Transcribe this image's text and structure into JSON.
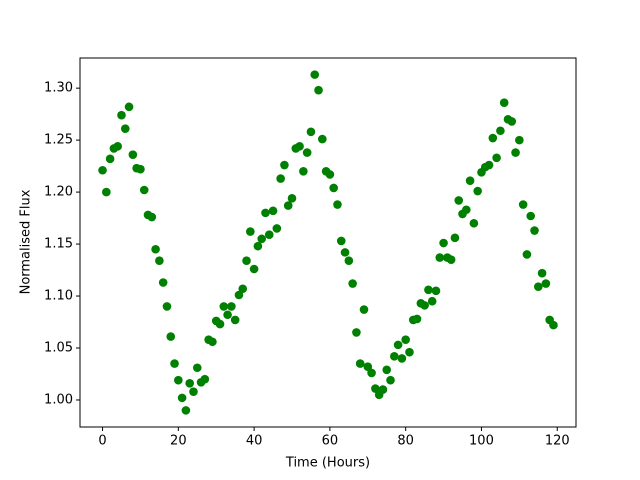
{
  "chart_data": {
    "type": "scatter",
    "xlabel": "Time (Hours)",
    "ylabel": "Normalised Flux",
    "color": "green",
    "x": [
      0,
      1,
      2,
      3,
      4,
      5,
      6,
      7,
      8,
      9,
      10,
      11,
      12,
      13,
      14,
      15,
      16,
      17,
      18,
      19,
      20,
      21,
      22,
      23,
      24,
      25,
      26,
      27,
      28,
      29,
      30,
      31,
      32,
      33,
      34,
      35,
      36,
      37,
      38,
      39,
      40,
      41,
      42,
      43,
      44,
      45,
      46,
      47,
      48,
      49,
      50,
      51,
      52,
      53,
      54,
      55,
      56,
      57,
      58,
      59,
      60,
      61,
      62,
      63,
      64,
      65,
      66,
      67,
      68,
      69,
      70,
      71,
      72,
      73,
      74,
      75,
      76,
      77,
      78,
      79,
      80,
      81,
      82,
      83,
      84,
      85,
      86,
      87,
      88,
      89,
      90,
      91,
      92,
      93,
      94,
      95,
      96,
      97,
      98,
      99,
      100,
      101,
      102,
      103,
      104,
      105,
      106,
      107,
      108,
      109,
      110,
      111,
      112,
      113,
      114,
      115,
      116,
      117,
      118,
      119
    ],
    "values": [
      1.221,
      1.2,
      1.232,
      1.242,
      1.244,
      1.274,
      1.261,
      1.282,
      1.236,
      1.223,
      1.222,
      1.202,
      1.178,
      1.176,
      1.145,
      1.134,
      1.113,
      1.09,
      1.061,
      1.035,
      1.019,
      1.002,
      0.99,
      1.016,
      1.008,
      1.031,
      1.017,
      1.02,
      1.058,
      1.056,
      1.076,
      1.073,
      1.09,
      1.082,
      1.09,
      1.077,
      1.101,
      1.107,
      1.134,
      1.162,
      1.126,
      1.148,
      1.155,
      1.18,
      1.159,
      1.182,
      1.165,
      1.213,
      1.226,
      1.187,
      1.194,
      1.242,
      1.244,
      1.22,
      1.238,
      1.258,
      1.313,
      1.298,
      1.251,
      1.22,
      1.217,
      1.204,
      1.188,
      1.153,
      1.142,
      1.134,
      1.112,
      1.065,
      1.035,
      1.087,
      1.032,
      1.026,
      1.011,
      1.005,
      1.01,
      1.029,
      1.019,
      1.042,
      1.053,
      1.04,
      1.058,
      1.046,
      1.077,
      1.078,
      1.093,
      1.091,
      1.106,
      1.095,
      1.105,
      1.137,
      1.151,
      1.137,
      1.135,
      1.156,
      1.192,
      1.179,
      1.183,
      1.211,
      1.17,
      1.201,
      1.219,
      1.224,
      1.226,
      1.252,
      1.233,
      1.259,
      1.286,
      1.27,
      1.268,
      1.238,
      1.25,
      1.188,
      1.14,
      1.177,
      1.163,
      1.109,
      1.122,
      1.112,
      1.077,
      1.072
    ],
    "xlim": [
      -5.95,
      124.95
    ],
    "xticks": [
      0,
      20,
      40,
      60,
      80,
      100,
      120
    ],
    "ylim": [
      0.974,
      1.329
    ],
    "yticks": [
      {
        "value": 1.0,
        "label": "1.00"
      },
      {
        "value": 1.05,
        "label": "1.05"
      },
      {
        "value": 1.1,
        "label": "1.10"
      },
      {
        "value": 1.15,
        "label": "1.15"
      },
      {
        "value": 1.2,
        "label": "1.20"
      },
      {
        "value": 1.25,
        "label": "1.25"
      },
      {
        "value": 1.3,
        "label": "1.30"
      }
    ]
  }
}
